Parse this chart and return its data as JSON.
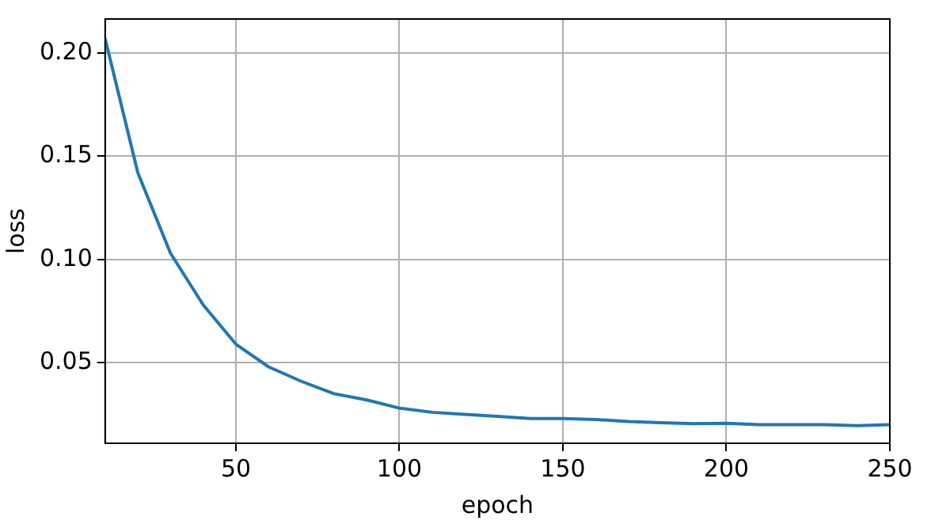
{
  "chart_data": {
    "type": "line",
    "xlabel": "epoch",
    "ylabel": "loss",
    "x": [
      10,
      20,
      30,
      40,
      50,
      60,
      70,
      80,
      90,
      100,
      110,
      120,
      130,
      140,
      150,
      160,
      170,
      180,
      190,
      200,
      210,
      220,
      230,
      240,
      250
    ],
    "series": [
      {
        "color": "#1f77b4",
        "values": [
          0.207,
          0.142,
          0.103,
          0.078,
          0.059,
          0.048,
          0.041,
          0.035,
          0.032,
          0.028,
          0.026,
          0.025,
          0.024,
          0.023,
          0.023,
          0.0225,
          0.0215,
          0.021,
          0.0205,
          0.0207,
          0.02,
          0.02,
          0.02,
          0.0195,
          0.02
        ]
      }
    ],
    "xlim": [
      10,
      250
    ],
    "xticks": [
      50,
      100,
      150,
      200,
      250
    ],
    "ylim": [
      0.011,
      0.2165
    ],
    "yticks": [
      {
        "value": 0.05,
        "label": "0.05"
      },
      {
        "value": 0.1,
        "label": "0.10"
      },
      {
        "value": 0.15,
        "label": "0.15"
      },
      {
        "value": 0.2,
        "label": "0.20"
      }
    ],
    "grid": true,
    "legend": false
  }
}
